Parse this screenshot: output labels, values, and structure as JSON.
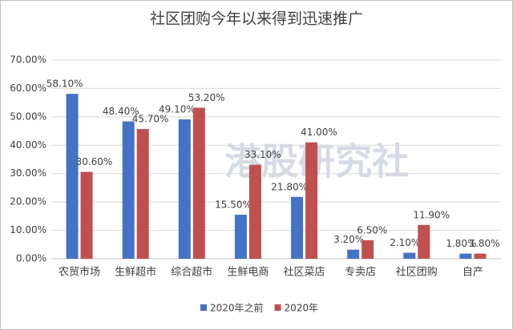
{
  "chart_data": {
    "type": "bar",
    "title": "社区团购今年以来得到迅速推广",
    "watermark": "港股研究社",
    "categories": [
      "农贸市场",
      "生鲜超市",
      "综合超市",
      "生鲜电商",
      "社区菜店",
      "专卖店",
      "社区团购",
      "自产"
    ],
    "series": [
      {
        "name": "2020年之前",
        "color": "#4472c4",
        "values": [
          58.1,
          48.4,
          49.1,
          15.5,
          21.8,
          3.2,
          2.1,
          1.8
        ],
        "value_labels": [
          "58.10%",
          "48.40%",
          "49.10%",
          "15.50%",
          "21.80%",
          "3.20%",
          "2.10%",
          "1.80%"
        ]
      },
      {
        "name": "2020年",
        "color": "#c0504d",
        "values": [
          30.6,
          45.7,
          53.2,
          33.1,
          41.0,
          6.5,
          11.9,
          1.8
        ],
        "value_labels": [
          "30.60%",
          "45.70%",
          "53.20%",
          "33.10%",
          "41.00%",
          "6.50%",
          "11.90%",
          "1.80%"
        ]
      }
    ],
    "ylim": [
      0,
      70
    ],
    "yticks": [
      {
        "value": 0,
        "label": "0.00%"
      },
      {
        "value": 10,
        "label": "10.00%"
      },
      {
        "value": 20,
        "label": "20.00%"
      },
      {
        "value": 30,
        "label": "30.00%"
      },
      {
        "value": 40,
        "label": "40.00%"
      },
      {
        "value": 50,
        "label": "50.00%"
      },
      {
        "value": 60,
        "label": "60.00%"
      },
      {
        "value": 70,
        "label": "70.00%"
      }
    ],
    "grid": true,
    "legend": "bottom"
  }
}
